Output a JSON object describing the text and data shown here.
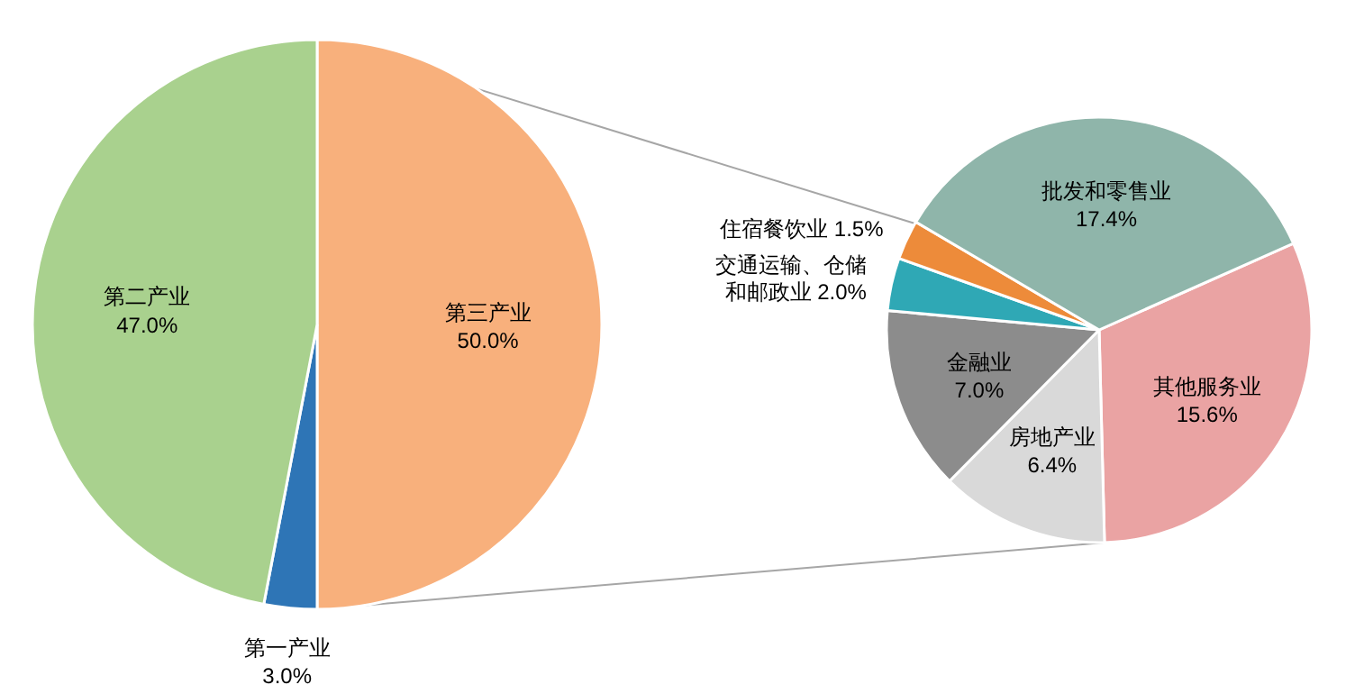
{
  "chart_data": [
    {
      "type": "pie",
      "categories": [
        "第三产业",
        "第一产业",
        "第二产业"
      ],
      "values": [
        50.0,
        3.0,
        47.0
      ],
      "colors": [
        "#f8b07c",
        "#2e75b6",
        "#a9d18e"
      ],
      "value_labels": [
        "50.0%",
        "3.0%",
        "47.0%"
      ]
    },
    {
      "type": "pie",
      "categories": [
        "其他服务业",
        "房地产业",
        "金融业",
        "交通运输、仓储和邮政业",
        "住宿餐饮业",
        "批发和零售业"
      ],
      "values": [
        15.6,
        6.4,
        7.0,
        2.0,
        1.5,
        17.4
      ],
      "colors": [
        "#eaa3a3",
        "#d9d9d9",
        "#8c8c8c",
        "#2fa8b5",
        "#ed8b3a",
        "#8fb5aa"
      ],
      "value_labels": [
        "15.6%",
        "6.4%",
        "7.0%",
        "2.0%",
        "1.5%",
        "17.4%"
      ]
    }
  ]
}
